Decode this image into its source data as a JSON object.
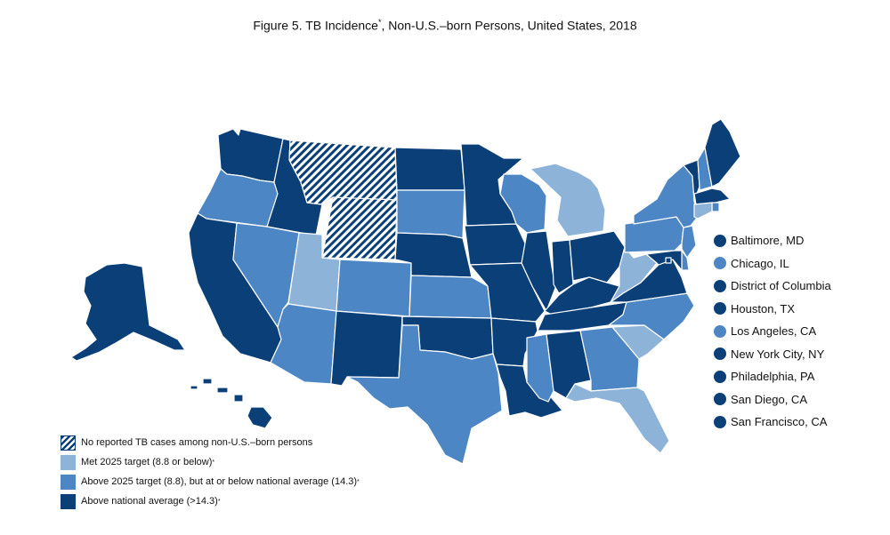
{
  "title": {
    "text_before": "Figure 5. TB Incidence",
    "text_after": ", Non-U.S.–born  Persons, United States, 2018",
    "asterisk": "*"
  },
  "colors": {
    "no_data": "hatched",
    "met_target": "#8db3d9",
    "above_target": "#4d86c4",
    "above_national": "#0b3f78",
    "outline": "#ffffff"
  },
  "legend": [
    {
      "category": "no_data",
      "label": "No reported TB cases among non-U.S.–born persons",
      "asterisk": ""
    },
    {
      "category": "met_target",
      "label": "Met 2025 target (8.8 or below)",
      "asterisk": "*"
    },
    {
      "category": "above_target",
      "label": "Above 2025 target (8.8), but at or below national average (14.3)",
      "asterisk": "*"
    },
    {
      "category": "above_national",
      "label": "Above national average (>14.3)",
      "asterisk": "*"
    }
  ],
  "cities": [
    {
      "name": "Baltimore, MD",
      "category": "above_national"
    },
    {
      "name": "Chicago, IL",
      "category": "above_target"
    },
    {
      "name": "District of Columbia",
      "category": "above_national"
    },
    {
      "name": "Houston, TX",
      "category": "above_national"
    },
    {
      "name": "Los Angeles, CA",
      "category": "above_target"
    },
    {
      "name": "New York City, NY",
      "category": "above_national"
    },
    {
      "name": "Philadelphia, PA",
      "category": "above_national"
    },
    {
      "name": "San Diego, CA",
      "category": "above_national"
    },
    {
      "name": "San Francisco, CA",
      "category": "above_national"
    }
  ],
  "states": {
    "WA": "above_national",
    "OR": "above_target",
    "CA": "above_national",
    "ID": "above_national",
    "NV": "above_target",
    "MT": "no_data",
    "WY": "no_data",
    "UT": "met_target",
    "AZ": "above_target",
    "CO": "above_target",
    "NM": "above_national",
    "ND": "above_national",
    "SD": "above_target",
    "NE": "above_national",
    "KS": "above_target",
    "OK": "above_national",
    "TX": "above_target",
    "MN": "above_national",
    "IA": "above_national",
    "MO": "above_national",
    "AR": "above_national",
    "LA": "above_national",
    "WI": "above_target",
    "IL": "above_national",
    "MI": "met_target",
    "IN": "above_national",
    "OH": "above_national",
    "KY": "above_national",
    "TN": "above_national",
    "MS": "above_target",
    "AL": "above_national",
    "GA": "above_target",
    "FL": "met_target",
    "SC": "met_target",
    "NC": "above_target",
    "VA": "above_national",
    "WV": "met_target",
    "PA": "above_target",
    "NY": "above_target",
    "VT": "above_national",
    "NH": "above_target",
    "ME": "above_national",
    "MA": "above_national",
    "RI": "above_target",
    "CT": "met_target",
    "NJ": "above_target",
    "DE": "above_target",
    "MD": "above_national",
    "DC": "above_national",
    "AK": "above_national",
    "HI": "above_national"
  }
}
